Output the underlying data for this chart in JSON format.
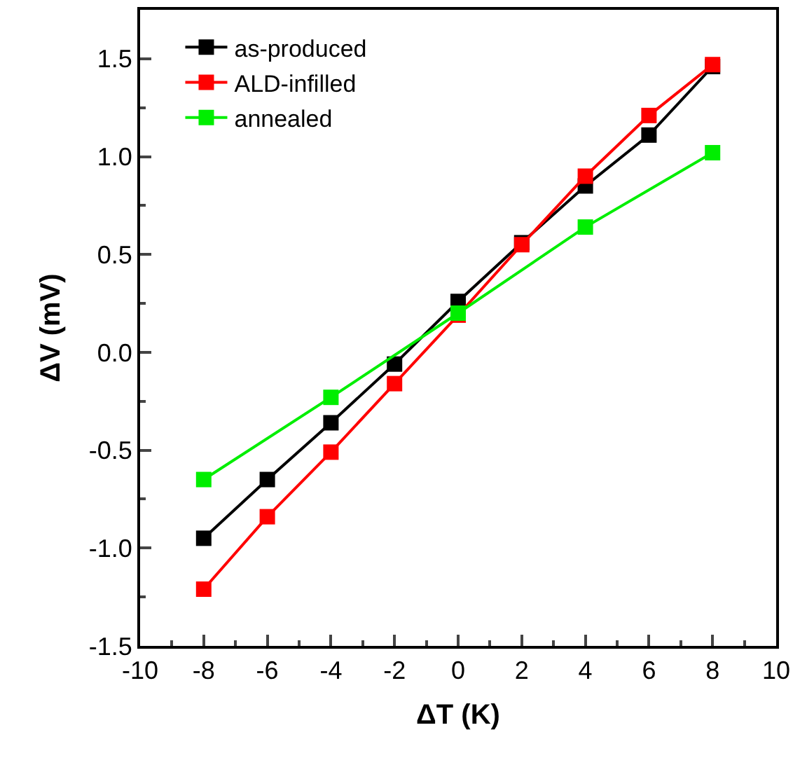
{
  "chart_data": {
    "type": "line",
    "xlabel": "ΔT (K)",
    "ylabel": "ΔV (mV)",
    "xlim": [
      -10,
      10
    ],
    "ylim": [
      -1.5,
      1.75
    ],
    "xticks": [
      -10,
      {
        "value": -9,
        "label": null
      },
      -8,
      {
        "value": -7,
        "label": null
      },
      -6,
      {
        "value": -5,
        "label": null
      },
      -4,
      {
        "value": -3,
        "label": null
      },
      -2,
      {
        "value": -1,
        "label": null
      },
      0,
      {
        "value": 1,
        "label": null
      },
      2,
      {
        "value": 3,
        "label": null
      },
      4,
      {
        "value": 5,
        "label": null
      },
      6,
      {
        "value": 7,
        "label": null
      },
      8,
      {
        "value": 9,
        "label": null
      },
      10
    ],
    "yticks": [
      {
        "value": -1.5,
        "label": "-1.5"
      },
      {
        "value": -1.25,
        "label": null
      },
      {
        "value": -1.0,
        "label": "-1.0"
      },
      {
        "value": -0.75,
        "label": null
      },
      {
        "value": -0.5,
        "label": "-0.5"
      },
      {
        "value": -0.25,
        "label": null
      },
      {
        "value": 0,
        "label": "0.0"
      },
      {
        "value": 0.25,
        "label": null
      },
      {
        "value": 0.5,
        "label": "0.5"
      },
      {
        "value": 0.75,
        "label": null
      },
      {
        "value": 1.0,
        "label": "1.0"
      },
      {
        "value": 1.25,
        "label": null
      },
      {
        "value": 1.5,
        "label": "1.5"
      }
    ],
    "legend": "top left",
    "marker": "square",
    "line_style": "solid",
    "series": [
      {
        "name": "as-produced",
        "color": "#000000",
        "x": [
          -8,
          -6,
          -4,
          -2,
          0,
          2,
          4,
          6,
          8
        ],
        "values": [
          -0.95,
          -0.65,
          -0.36,
          -0.06,
          0.26,
          0.56,
          0.85,
          1.11,
          1.46
        ]
      },
      {
        "name": "ALD-infilled",
        "color": "#ff0000",
        "x": [
          -8,
          -6,
          -4,
          -2,
          0,
          2,
          4,
          6,
          8
        ],
        "values": [
          -1.21,
          -0.84,
          -0.51,
          -0.16,
          0.19,
          0.55,
          0.9,
          1.21,
          1.47
        ]
      },
      {
        "name": "annealed",
        "color": "#00ee00",
        "x": [
          -8,
          -4,
          0,
          4,
          8
        ],
        "values": [
          -0.65,
          -0.23,
          0.2,
          0.64,
          1.02
        ]
      }
    ]
  }
}
